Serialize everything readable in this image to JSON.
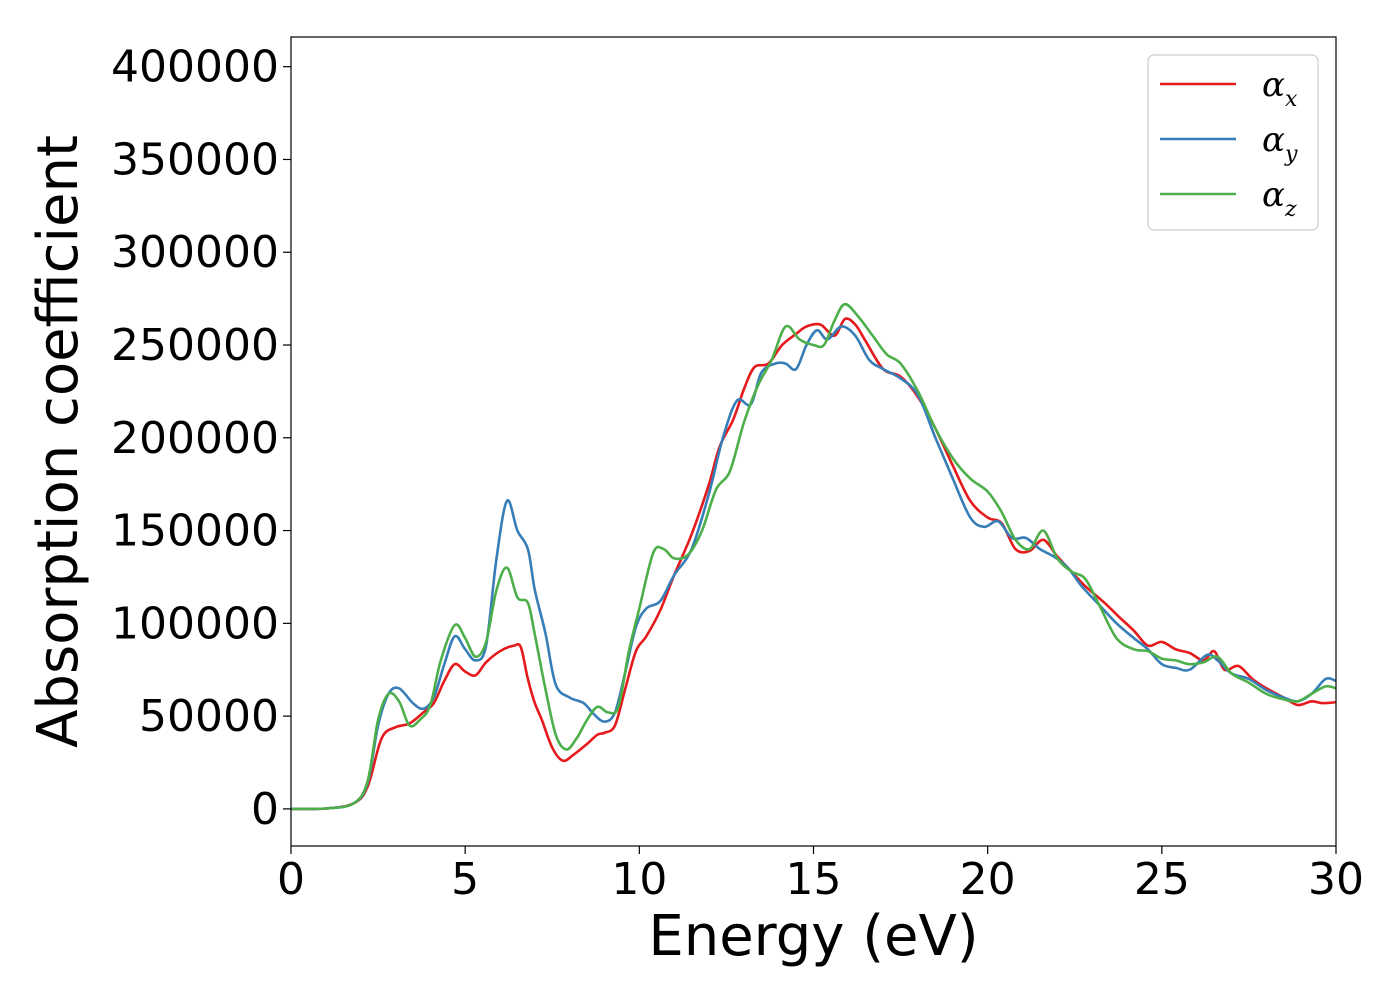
{
  "chart_data": {
    "type": "line",
    "title": "",
    "xlabel": "Energy (eV)",
    "ylabel": "Absorption coefficient",
    "xlim": [
      0,
      30
    ],
    "ylim": [
      -20000,
      416000
    ],
    "xticks": [
      0,
      5,
      10,
      15,
      20,
      25,
      30
    ],
    "yticks": [
      0,
      50000,
      100000,
      150000,
      200000,
      250000,
      300000,
      350000,
      400000
    ],
    "grid": false,
    "legend_position": "top-right",
    "series": [
      {
        "name": "α",
        "subscript": "x",
        "color": "#e41a1c",
        "points": [
          [
            0,
            0
          ],
          [
            1,
            200
          ],
          [
            1.8,
            3000
          ],
          [
            2.2,
            12000
          ],
          [
            2.6,
            38000
          ],
          [
            3.0,
            44000
          ],
          [
            3.4,
            46000
          ],
          [
            3.8,
            52000
          ],
          [
            4.1,
            57000
          ],
          [
            4.4,
            69000
          ],
          [
            4.7,
            78000
          ],
          [
            5.0,
            74000
          ],
          [
            5.3,
            72000
          ],
          [
            5.6,
            79000
          ],
          [
            6.0,
            85000
          ],
          [
            6.4,
            88000
          ],
          [
            6.6,
            87000
          ],
          [
            6.8,
            70000
          ],
          [
            7.0,
            57000
          ],
          [
            7.2,
            48000
          ],
          [
            7.5,
            33000
          ],
          [
            7.8,
            26000
          ],
          [
            8.1,
            29000
          ],
          [
            8.5,
            35000
          ],
          [
            8.8,
            40000
          ],
          [
            9.0,
            41000
          ],
          [
            9.3,
            45000
          ],
          [
            9.6,
            65000
          ],
          [
            9.9,
            85000
          ],
          [
            10.2,
            93000
          ],
          [
            10.6,
            107000
          ],
          [
            11.0,
            126000
          ],
          [
            11.5,
            148000
          ],
          [
            12.0,
            175000
          ],
          [
            12.3,
            195000
          ],
          [
            12.7,
            210000
          ],
          [
            13.0,
            226000
          ],
          [
            13.3,
            238000
          ],
          [
            13.7,
            240000
          ],
          [
            14.1,
            250000
          ],
          [
            14.5,
            256000
          ],
          [
            14.8,
            260000
          ],
          [
            15.2,
            261000
          ],
          [
            15.6,
            255000
          ],
          [
            15.9,
            264000
          ],
          [
            16.2,
            261000
          ],
          [
            16.5,
            252000
          ],
          [
            17.0,
            237000
          ],
          [
            17.5,
            233000
          ],
          [
            18.0,
            222000
          ],
          [
            18.5,
            205000
          ],
          [
            19.0,
            185000
          ],
          [
            19.5,
            166000
          ],
          [
            20.0,
            157000
          ],
          [
            20.4,
            154000
          ],
          [
            20.8,
            140000
          ],
          [
            21.2,
            139000
          ],
          [
            21.6,
            145000
          ],
          [
            22.0,
            136000
          ],
          [
            22.4,
            128000
          ],
          [
            22.8,
            120000
          ],
          [
            23.3,
            112000
          ],
          [
            23.8,
            103000
          ],
          [
            24.2,
            96000
          ],
          [
            24.6,
            88000
          ],
          [
            25.0,
            90000
          ],
          [
            25.4,
            86000
          ],
          [
            25.8,
            84000
          ],
          [
            26.2,
            80000
          ],
          [
            26.5,
            85000
          ],
          [
            26.8,
            75000
          ],
          [
            27.2,
            77000
          ],
          [
            27.6,
            70000
          ],
          [
            28.0,
            65000
          ],
          [
            28.5,
            60000
          ],
          [
            28.9,
            56000
          ],
          [
            29.3,
            58000
          ],
          [
            29.6,
            57000
          ],
          [
            30,
            57500
          ]
        ]
      },
      {
        "name": "α",
        "subscript": "y",
        "color": "#377eb8",
        "points": [
          [
            0,
            0
          ],
          [
            1,
            200
          ],
          [
            1.8,
            3000
          ],
          [
            2.2,
            14000
          ],
          [
            2.5,
            45000
          ],
          [
            2.8,
            62000
          ],
          [
            3.1,
            65000
          ],
          [
            3.5,
            57000
          ],
          [
            3.8,
            54000
          ],
          [
            4.1,
            60000
          ],
          [
            4.4,
            78000
          ],
          [
            4.7,
            93000
          ],
          [
            5.0,
            86000
          ],
          [
            5.3,
            80000
          ],
          [
            5.6,
            88000
          ],
          [
            5.9,
            135000
          ],
          [
            6.2,
            166000
          ],
          [
            6.5,
            150000
          ],
          [
            6.8,
            140000
          ],
          [
            7.0,
            118000
          ],
          [
            7.3,
            95000
          ],
          [
            7.6,
            67000
          ],
          [
            8.0,
            60000
          ],
          [
            8.4,
            57000
          ],
          [
            8.7,
            51000
          ],
          [
            9.0,
            47000
          ],
          [
            9.3,
            52000
          ],
          [
            9.6,
            74000
          ],
          [
            9.9,
            98000
          ],
          [
            10.2,
            108000
          ],
          [
            10.6,
            112000
          ],
          [
            11.0,
            126000
          ],
          [
            11.5,
            140000
          ],
          [
            12.0,
            170000
          ],
          [
            12.4,
            200000
          ],
          [
            12.8,
            220000
          ],
          [
            13.2,
            218000
          ],
          [
            13.5,
            235000
          ],
          [
            13.9,
            240000
          ],
          [
            14.2,
            240000
          ],
          [
            14.5,
            237000
          ],
          [
            14.8,
            250000
          ],
          [
            15.1,
            258000
          ],
          [
            15.4,
            253000
          ],
          [
            15.8,
            260000
          ],
          [
            16.2,
            255000
          ],
          [
            16.6,
            242000
          ],
          [
            17.0,
            237000
          ],
          [
            17.5,
            232000
          ],
          [
            18.0,
            223000
          ],
          [
            18.5,
            200000
          ],
          [
            19.0,
            178000
          ],
          [
            19.5,
            157000
          ],
          [
            19.9,
            152000
          ],
          [
            20.3,
            155000
          ],
          [
            20.7,
            146000
          ],
          [
            21.1,
            146000
          ],
          [
            21.5,
            140000
          ],
          [
            21.9,
            136000
          ],
          [
            22.3,
            130000
          ],
          [
            22.7,
            120000
          ],
          [
            23.2,
            110000
          ],
          [
            23.7,
            100000
          ],
          [
            24.2,
            92000
          ],
          [
            24.6,
            86000
          ],
          [
            25.0,
            78000
          ],
          [
            25.4,
            76000
          ],
          [
            25.8,
            75000
          ],
          [
            26.3,
            83000
          ],
          [
            26.6,
            80000
          ],
          [
            27.0,
            73000
          ],
          [
            27.5,
            70000
          ],
          [
            28.0,
            64000
          ],
          [
            28.5,
            60000
          ],
          [
            28.9,
            58000
          ],
          [
            29.3,
            62000
          ],
          [
            29.7,
            70000
          ],
          [
            30,
            69000
          ]
        ]
      },
      {
        "name": "α",
        "subscript": "z",
        "color": "#4daf4a",
        "points": [
          [
            0,
            0
          ],
          [
            1,
            200
          ],
          [
            1.8,
            3000
          ],
          [
            2.2,
            15000
          ],
          [
            2.5,
            48000
          ],
          [
            2.8,
            62000
          ],
          [
            3.1,
            58000
          ],
          [
            3.4,
            45000
          ],
          [
            3.7,
            48000
          ],
          [
            4.0,
            56000
          ],
          [
            4.3,
            80000
          ],
          [
            4.7,
            99000
          ],
          [
            5.0,
            92000
          ],
          [
            5.3,
            82000
          ],
          [
            5.6,
            90000
          ],
          [
            5.9,
            118000
          ],
          [
            6.2,
            130000
          ],
          [
            6.5,
            114000
          ],
          [
            6.8,
            111000
          ],
          [
            7.0,
            94000
          ],
          [
            7.3,
            65000
          ],
          [
            7.6,
            40000
          ],
          [
            7.9,
            32000
          ],
          [
            8.2,
            38000
          ],
          [
            8.5,
            48000
          ],
          [
            8.8,
            55000
          ],
          [
            9.1,
            52000
          ],
          [
            9.4,
            55000
          ],
          [
            9.7,
            85000
          ],
          [
            10.0,
            108000
          ],
          [
            10.4,
            138000
          ],
          [
            10.7,
            140000
          ],
          [
            11.0,
            135000
          ],
          [
            11.4,
            137000
          ],
          [
            11.8,
            150000
          ],
          [
            12.2,
            172000
          ],
          [
            12.6,
            182000
          ],
          [
            13.0,
            208000
          ],
          [
            13.4,
            228000
          ],
          [
            13.8,
            242000
          ],
          [
            14.2,
            260000
          ],
          [
            14.6,
            253000
          ],
          [
            15.0,
            250000
          ],
          [
            15.3,
            250000
          ],
          [
            15.6,
            263000
          ],
          [
            15.9,
            272000
          ],
          [
            16.3,
            265000
          ],
          [
            16.7,
            255000
          ],
          [
            17.1,
            245000
          ],
          [
            17.5,
            240000
          ],
          [
            18.0,
            225000
          ],
          [
            18.5,
            205000
          ],
          [
            19.0,
            189000
          ],
          [
            19.5,
            178000
          ],
          [
            20.0,
            171000
          ],
          [
            20.4,
            160000
          ],
          [
            20.8,
            145000
          ],
          [
            21.2,
            140000
          ],
          [
            21.6,
            150000
          ],
          [
            22.0,
            135000
          ],
          [
            22.4,
            128000
          ],
          [
            22.8,
            124000
          ],
          [
            23.2,
            110000
          ],
          [
            23.7,
            92000
          ],
          [
            24.2,
            86000
          ],
          [
            24.6,
            85000
          ],
          [
            25.0,
            81000
          ],
          [
            25.4,
            80000
          ],
          [
            25.8,
            78000
          ],
          [
            26.2,
            79000
          ],
          [
            26.6,
            82000
          ],
          [
            27.0,
            73000
          ],
          [
            27.5,
            68000
          ],
          [
            28.0,
            62000
          ],
          [
            28.5,
            59000
          ],
          [
            28.9,
            58000
          ],
          [
            29.3,
            62000
          ],
          [
            29.7,
            66000
          ],
          [
            30,
            65000
          ]
        ]
      }
    ]
  }
}
